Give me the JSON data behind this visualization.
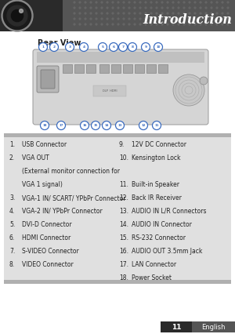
{
  "title": "Introduction",
  "page_num": "11",
  "page_lang": "English",
  "section_title": "Rear View",
  "bg_color": "#ffffff",
  "header_title_color": "#ffffff",
  "list_bg": "#e0e0e0",
  "list_stripe_color": "#b0b0b0",
  "list_items_left": [
    [
      "1.",
      "USB Connector"
    ],
    [
      "2.",
      "VGA OUT"
    ],
    [
      "",
      "(External monitor connection for"
    ],
    [
      "",
      "VGA 1 signal)"
    ],
    [
      "3.",
      "VGA-1 IN/ SCART/ YPbPr Connector"
    ],
    [
      "4.",
      "VGA-2 IN/ YPbPr Connector"
    ],
    [
      "5.",
      "DVI-D Connector"
    ],
    [
      "6.",
      "HDMI Connector"
    ],
    [
      "7.",
      "S-VIDEO Connector"
    ],
    [
      "8.",
      "VIDEO Connector"
    ]
  ],
  "list_items_right": [
    [
      "9.",
      "12V DC Connector"
    ],
    [
      "10.",
      "Kensington Lock"
    ],
    [
      "11.",
      "Built-in Speaker"
    ],
    [
      "12.",
      "Back IR Receiver"
    ],
    [
      "13.",
      "AUDIO IN L/R Connectors"
    ],
    [
      "14.",
      "AUDIO IN Connector"
    ],
    [
      "15.",
      "RS-232 Connector"
    ],
    [
      "16.",
      "AUDIO OUT 3.5mm Jack"
    ],
    [
      "17.",
      "LAN Connector"
    ],
    [
      "18.",
      "Power Socket"
    ]
  ],
  "text_color": "#222222",
  "circle_color": "#3a6bbf",
  "circle_fill": "#ffffff",
  "footer_dark": "#2a2a2a",
  "footer_mid": "#555555",
  "header_dark": "#2a2a2a",
  "header_mid": "#555555",
  "dot_color": "#666666"
}
